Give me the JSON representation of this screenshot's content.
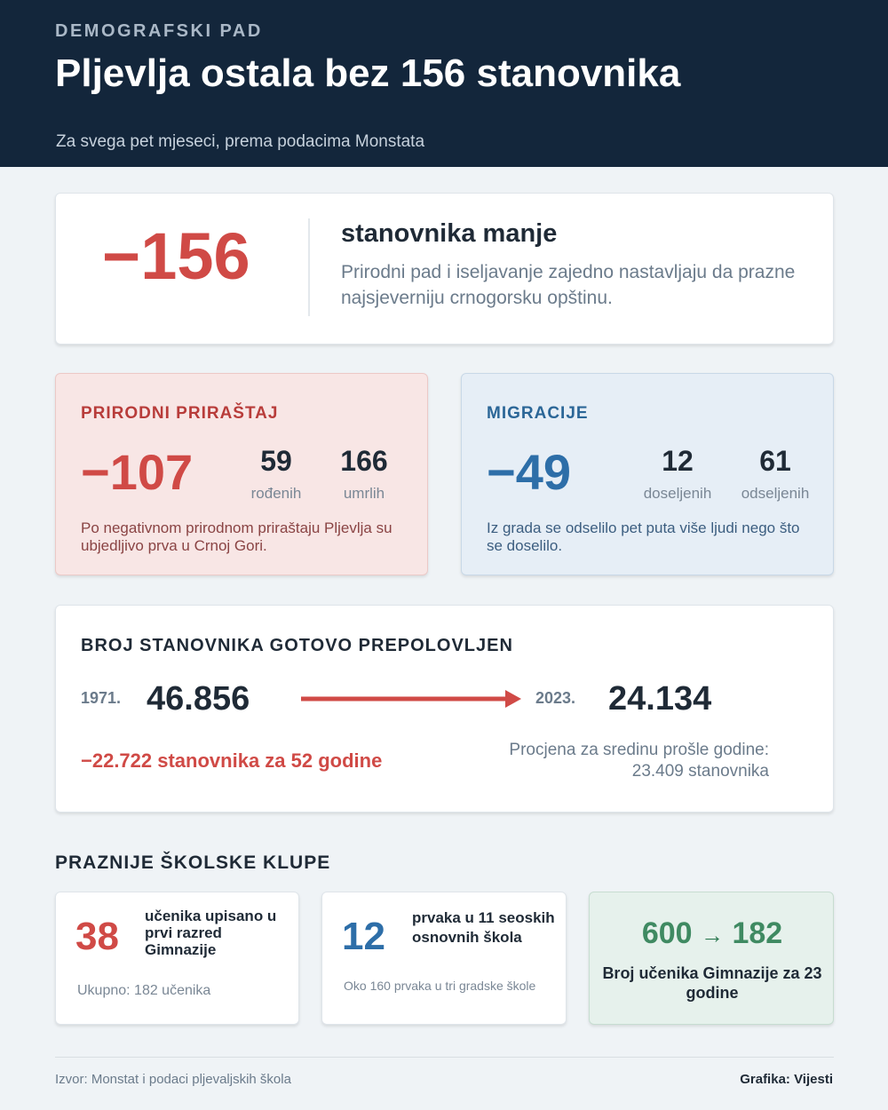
{
  "header": {
    "kicker": "DEMOGRAFSKI PAD",
    "title": "Pljevlja ostala bez 156 stanovnika",
    "subtitle": "Za svega pet mjeseci, prema podacima Monstata"
  },
  "hero": {
    "number": "−156",
    "label": "stanovnika manje",
    "description": "Prirodni pad i iseljavanje zajedno nastavljaju da prazne najsjeverniju crnogorsku opštinu."
  },
  "natural": {
    "title": "PRIRODNI PRIRAŠTAJ",
    "total": "−107",
    "stat1": {
      "value": "59",
      "label": "rođenih"
    },
    "stat2": {
      "value": "166",
      "label": "umrlih"
    },
    "note": "Po negativnom prirodnom priraštaju Pljevlja su ubjedljivo prva u Crnoj Gori."
  },
  "migration": {
    "title": "MIGRACIJE",
    "total": "−49",
    "stat1": {
      "value": "12",
      "label": "doseljenih"
    },
    "stat2": {
      "value": "61",
      "label": "odseljenih"
    },
    "note": "Iz grada se odselilo pet puta više ljudi nego što se doselilo."
  },
  "population": {
    "title": "BROJ STANOVNIKA GOTOVO PREPOLOVLJEN",
    "from_year": "1971.",
    "from_value": "46.856",
    "to_year": "2023.",
    "to_value": "24.134",
    "loss": "−22.722 stanovnika za 52 godine",
    "estimate_line1": "Procjena za sredinu prošle godine:",
    "estimate_line2": "23.409 stanovnika"
  },
  "schools": {
    "title": "PRAZNIJE ŠKOLSKE KLUPE",
    "card1": {
      "number": "38",
      "label": "učenika upisano u prvi razred Gimnazije",
      "note": "Ukupno: 182 učenika"
    },
    "card2": {
      "number": "12",
      "label": "prvaka u 11 seoskih osnovnih škola",
      "note": "Oko 160 prvaka u tri gradske škole"
    },
    "card3": {
      "from": "600",
      "arrow": "→",
      "to": "182",
      "label": "Broj učenika Gimnazije za 23 godine"
    }
  },
  "footer": {
    "source": "Izvor: Monstat i podaci pljevaljskih škola",
    "credit": "Grafika: Vijesti"
  },
  "colors": {
    "header_bg": "#13263b",
    "negative_red": "#d04a46",
    "migration_blue": "#2d6ea8",
    "school_green": "#3f8a62"
  }
}
